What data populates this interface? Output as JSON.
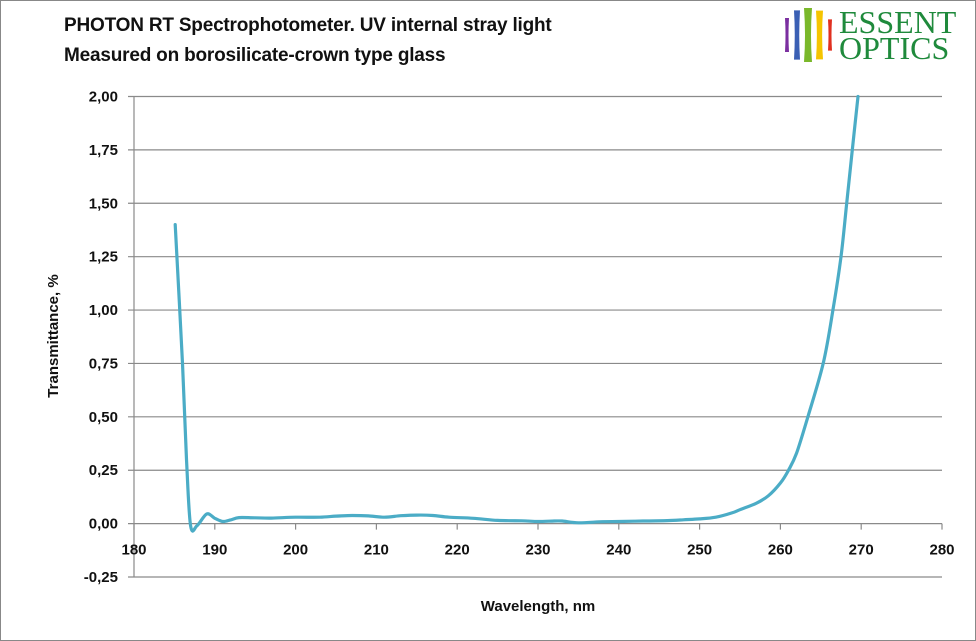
{
  "header": {
    "title_line1": "PHOTON RT Spectrophotometer. UV internal stray light",
    "title_line2": "Measured on borosilicate-crown type glass"
  },
  "logo": {
    "line1": "ESSENT",
    "line2": "OPTICS",
    "text_color": "#1f8a3c",
    "bar_colors": [
      "#7b2fa0",
      "#3a5fb4",
      "#7ab82a",
      "#f5c400",
      "#e03020"
    ]
  },
  "chart_data": {
    "type": "line",
    "title": "PHOTON RT Spectrophotometer. UV internal stray light",
    "subtitle": "Measured on borosilicate-crown type glass",
    "xlabel": "Wavelength, nm",
    "ylabel": "Transmittance, %",
    "xlim": [
      180,
      280
    ],
    "ylim": [
      -0.25,
      2.0
    ],
    "x_ticks": [
      180,
      190,
      200,
      210,
      220,
      230,
      240,
      250,
      260,
      270,
      280
    ],
    "x_tick_labels": [
      "180",
      "190",
      "200",
      "210",
      "220",
      "230",
      "240",
      "250",
      "260",
      "270",
      "280"
    ],
    "y_ticks": [
      -0.25,
      0,
      0.25,
      0.5,
      0.75,
      1.0,
      1.25,
      1.5,
      1.75,
      2.0
    ],
    "y_tick_labels": [
      "-0,25",
      "0,00",
      "0,25",
      "0,50",
      "0,75",
      "1,00",
      "1,25",
      "1,50",
      "1,75",
      "2,00"
    ],
    "grid": "horizontal",
    "legend": "none",
    "series": [
      {
        "name": "Transmittance",
        "color": "#4bacc6",
        "x": [
          185.1,
          186.0,
          186.5,
          187.0,
          187.8,
          189.0,
          190.0,
          191.0,
          192.0,
          193.0,
          195.0,
          197.0,
          200.0,
          203.0,
          205.0,
          207.0,
          209.0,
          211.0,
          213.0,
          215.0,
          217.0,
          219.0,
          222.0,
          225.0,
          228.0,
          230.0,
          232.0,
          233.0,
          235.0,
          238.0,
          240.0,
          243.0,
          246.0,
          248.0,
          250.0,
          252.0,
          254.0,
          255.0,
          257.0,
          258.5,
          260.0,
          261.0,
          262.0,
          263.4,
          265.3,
          266.5,
          267.5,
          268.2,
          268.9,
          269.6
        ],
        "y": [
          1.4,
          0.75,
          0.3,
          -0.01,
          -0.01,
          0.045,
          0.025,
          0.01,
          0.018,
          0.028,
          0.027,
          0.026,
          0.03,
          0.03,
          0.035,
          0.038,
          0.036,
          0.03,
          0.037,
          0.04,
          0.038,
          0.03,
          0.025,
          0.015,
          0.013,
          0.01,
          0.012,
          0.012,
          0.004,
          0.009,
          0.01,
          0.012,
          0.014,
          0.018,
          0.022,
          0.03,
          0.05,
          0.065,
          0.095,
          0.13,
          0.19,
          0.25,
          0.33,
          0.5,
          0.75,
          1.0,
          1.25,
          1.5,
          1.75,
          2.0
        ]
      }
    ]
  }
}
